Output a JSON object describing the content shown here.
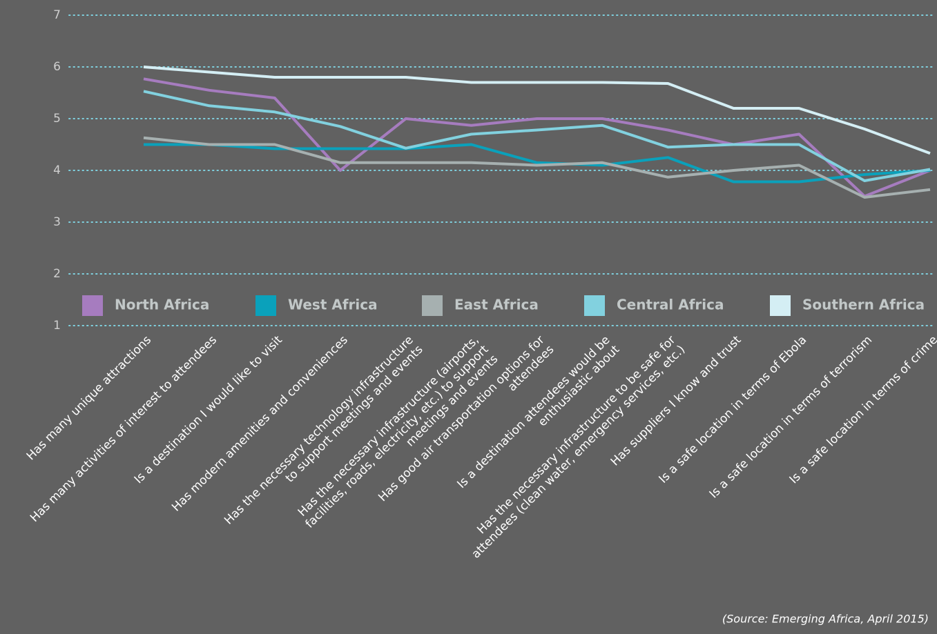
{
  "chart_data": {
    "type": "line",
    "categories": [
      "Has many unique attractions",
      "Has many activities of interest to attendees",
      "Is a destination I would like to visit",
      "Has modern amenities and conveniences",
      "Has the necessary technology infrastructure\nto support meetings and events",
      "Has the necessary infrastructure (airports,\nfacilities, roads, electricity, etc.) to support\nmeetings and events",
      "Has good air transportation options for\nattendees",
      "Is a destination attendees would be\nenthusiastic about",
      "Has the necessary infrastructure to be safe for\nattendees (clean water, emergency services, etc.)",
      "Has suppliers I know and trust",
      "Is a safe location in terms of Ebola",
      "Is a safe location in terms of terrorism",
      "Is a safe location in terms of crime"
    ],
    "series": [
      {
        "name": "North Africa",
        "color": "#a67cbf",
        "values": [
          5.77,
          5.55,
          5.4,
          4.0,
          5.0,
          4.87,
          5.0,
          5.0,
          4.78,
          4.5,
          4.7,
          3.5,
          4.0
        ]
      },
      {
        "name": "West Africa",
        "color": "#0aa1bb",
        "values": [
          4.5,
          4.5,
          4.42,
          4.42,
          4.42,
          4.5,
          4.15,
          4.1,
          4.25,
          3.78,
          3.78,
          3.92,
          4.0
        ]
      },
      {
        "name": "East Africa",
        "color": "#a6b0b0",
        "values": [
          4.63,
          4.5,
          4.5,
          4.15,
          4.15,
          4.15,
          4.1,
          4.15,
          3.87,
          4.0,
          4.1,
          3.48,
          3.63
        ]
      },
      {
        "name": "Central Africa",
        "color": "#82d1df",
        "values": [
          5.53,
          5.25,
          5.13,
          4.85,
          4.43,
          4.7,
          4.78,
          4.87,
          4.45,
          4.5,
          4.5,
          3.8,
          4.02
        ]
      },
      {
        "name": "Southern Africa",
        "color": "#d4eef4",
        "values": [
          6.0,
          5.9,
          5.8,
          5.8,
          5.8,
          5.7,
          5.7,
          5.7,
          5.68,
          5.2,
          5.2,
          4.8,
          4.33
        ]
      }
    ],
    "ylim": [
      1,
      7
    ],
    "yticks": [
      1,
      2,
      3,
      4,
      5,
      6,
      7
    ],
    "grid": true,
    "legend": "bottom",
    "source": "(Source: Emerging Africa, April 2015)"
  }
}
